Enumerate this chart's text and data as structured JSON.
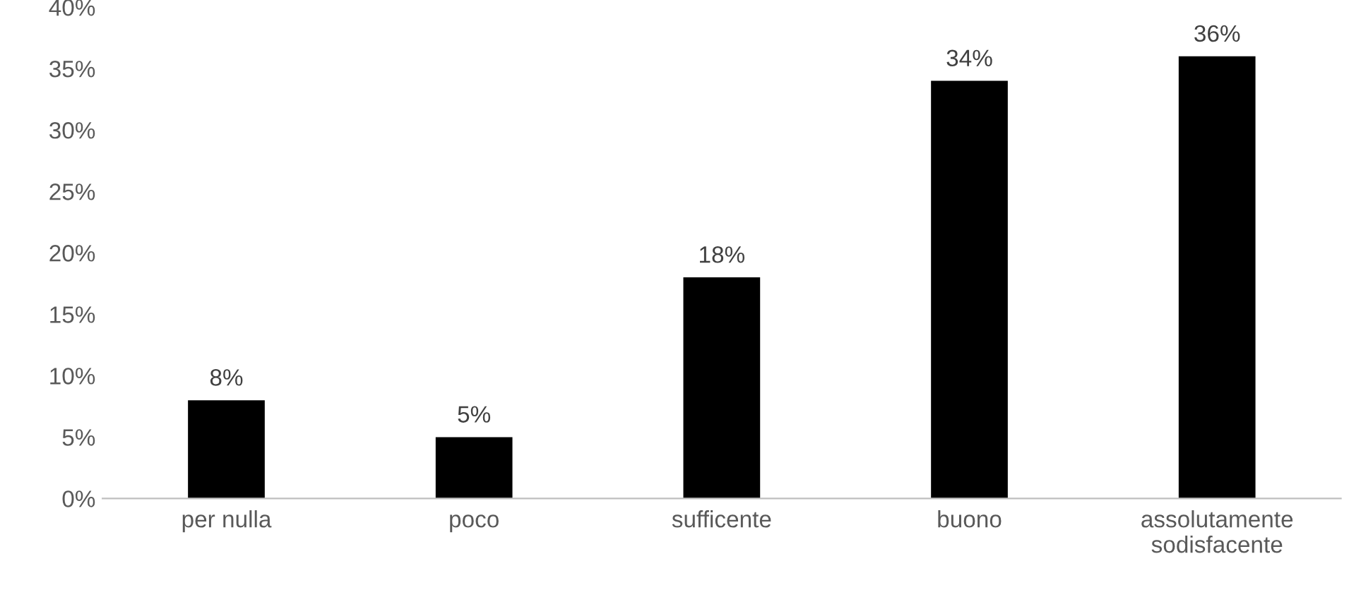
{
  "chart_data": {
    "type": "bar",
    "categories": [
      "per nulla",
      "poco",
      "sufficente",
      "buono",
      "assolutamente\nsodisfacente"
    ],
    "values": [
      8,
      5,
      18,
      34,
      36
    ],
    "value_labels": [
      "8%",
      "5%",
      "18%",
      "34%",
      "36%"
    ],
    "color": "#000000",
    "ylim": [
      0,
      40
    ],
    "yticks": [
      {
        "value": 0,
        "label": "0%"
      },
      {
        "value": 5,
        "label": "5%"
      },
      {
        "value": 10,
        "label": "10%"
      },
      {
        "value": 15,
        "label": "15%"
      },
      {
        "value": 20,
        "label": "20%"
      },
      {
        "value": 25,
        "label": "25%"
      },
      {
        "value": 30,
        "label": "30%"
      },
      {
        "value": 35,
        "label": "35%"
      },
      {
        "value": 40,
        "label": "40%"
      }
    ],
    "grid": false
  }
}
